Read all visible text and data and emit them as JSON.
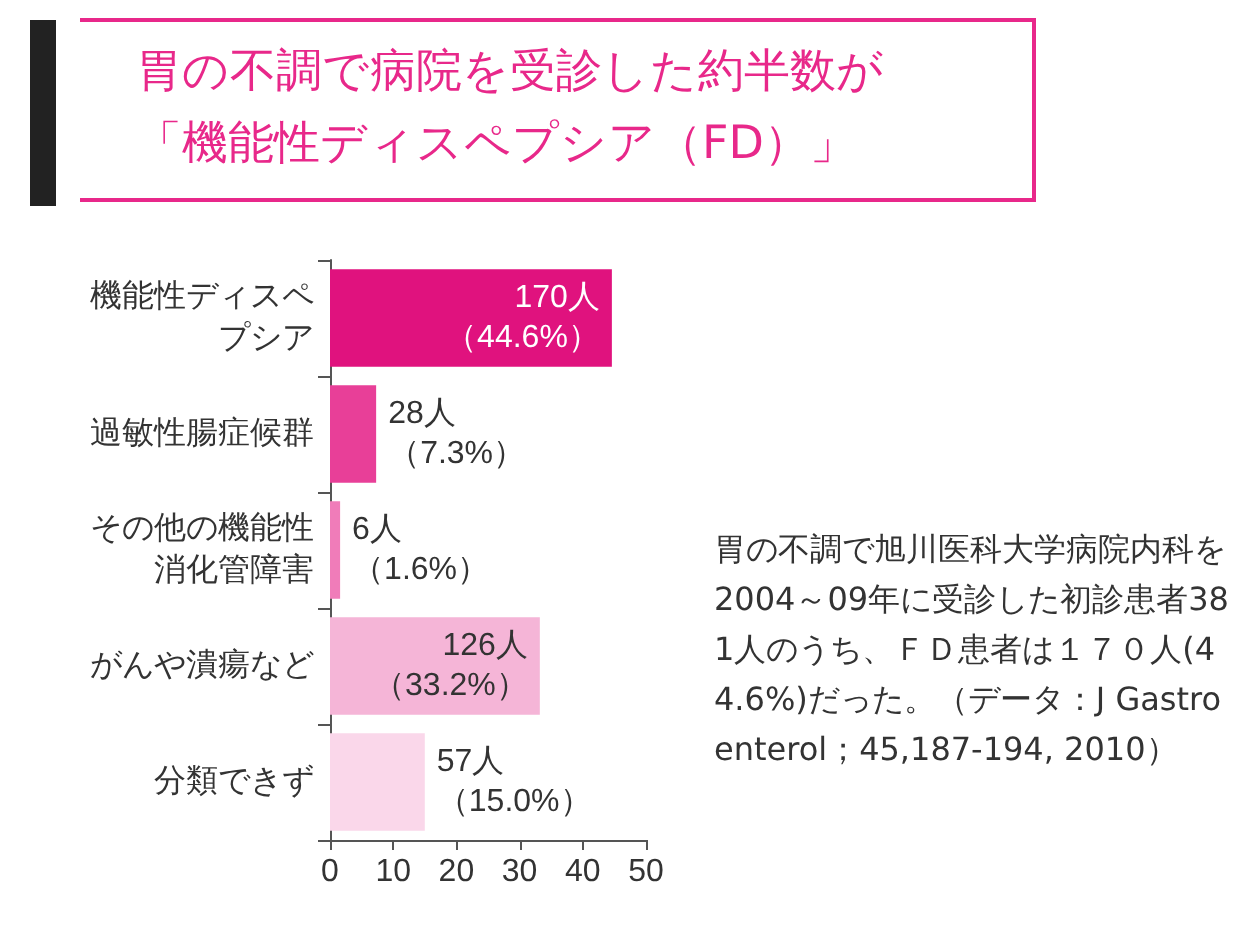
{
  "chart_data": {
    "type": "bar",
    "orientation": "horizontal",
    "title": "胃の不調で病院を受診した約半数が「機能性ディスペプシア（FD）」",
    "categories": [
      "機能性ディスペプシア",
      "過敏性腸症候群",
      "その他の機能性消化管障害",
      "がんや潰瘍など",
      "分類できず"
    ],
    "values": [
      44.6,
      7.3,
      1.6,
      33.2,
      15.0
    ],
    "colors": [
      "#e0127e",
      "#e83f98",
      "#f07cb9",
      "#f5b5d7",
      "#fad7ea"
    ],
    "value_labels": [
      "170人（44.6%）",
      "28人（7.3%）",
      "6人（1.6%）",
      "126人（33.2%）",
      "57人（15.0%）"
    ],
    "xlim": [
      0,
      50
    ],
    "xticks": [
      0,
      10,
      20,
      30,
      40,
      50
    ],
    "grid": false,
    "annotations": [
      "胃の不調で旭川医科大学病院内科を2004～09年に受診した初診患者381人のうち、ＦＤ患者は１７０人(44.6%)だった。（データ：J Gastroenterol；45,187-194, 2010）"
    ]
  }
}
